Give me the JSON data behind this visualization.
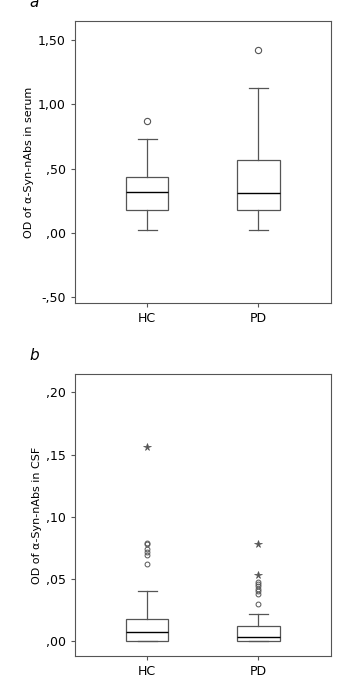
{
  "panel_a_label": "a",
  "panel_b_label": "b",
  "serum_ylabel": "OD of α-Syn-nAbs in serum",
  "csf_ylabel": "OD of α-Syn-nAbs in CSF",
  "xlabel": [
    "HC",
    "PD"
  ],
  "serum_ylim": [
    -0.55,
    1.65
  ],
  "serum_yticks": [
    -0.5,
    0.0,
    0.5,
    1.0,
    1.5
  ],
  "serum_yticklabels": [
    "-,50",
    ",00",
    ",50",
    "1,00",
    "1,50"
  ],
  "csf_ylim": [
    -0.012,
    0.215
  ],
  "csf_yticks": [
    0.0,
    0.05,
    0.1,
    0.15,
    0.2
  ],
  "csf_yticklabels": [
    ",00",
    ",05",
    ",10",
    ",15",
    ",20"
  ],
  "serum_hc": {
    "q1": 0.18,
    "median": 0.32,
    "q3": 0.43,
    "whislo": 0.02,
    "whishi": 0.73,
    "fliers": [
      0.87
    ]
  },
  "serum_pd": {
    "q1": 0.18,
    "median": 0.31,
    "q3": 0.57,
    "whislo": 0.02,
    "whishi": 1.13,
    "fliers": [
      1.42
    ]
  },
  "csf_hc": {
    "q1": 0.0,
    "median": 0.007,
    "q3": 0.018,
    "whislo": 0.0,
    "whishi": 0.04,
    "fliers_circle": [
      0.062,
      0.069,
      0.072,
      0.074,
      0.078,
      0.079
    ],
    "fliers_star": [
      0.156
    ]
  },
  "csf_pd": {
    "q1": 0.0,
    "median": 0.003,
    "q3": 0.012,
    "whislo": 0.0,
    "whishi": 0.022,
    "fliers_circle": [
      0.03,
      0.038,
      0.04,
      0.042,
      0.044,
      0.046,
      0.048
    ],
    "fliers_star": [
      0.053,
      0.078
    ]
  },
  "box_linecolor": "#555555",
  "median_color": "#000000",
  "flier_color": "#555555",
  "background_color": "#ffffff",
  "plot_bg_color": "#ffffff",
  "box_width": 0.38,
  "fontsize": 9,
  "label_fontsize": 8,
  "spine_color": "#555555"
}
